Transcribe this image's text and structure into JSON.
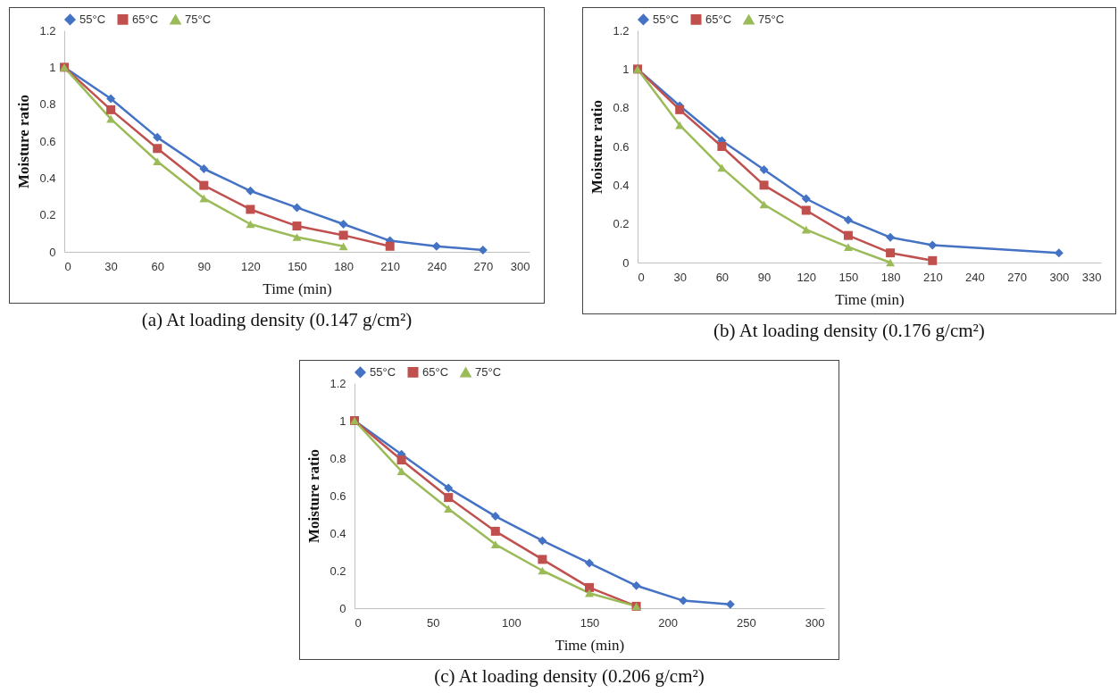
{
  "chart_data": [
    {
      "type": "line",
      "xlabel": "Time  (min)",
      "ylabel": "Moisture ratio",
      "xlim": [
        0,
        300
      ],
      "xticks": [
        0,
        30,
        60,
        90,
        120,
        150,
        180,
        210,
        240,
        270,
        300
      ],
      "ylim": [
        0,
        1.2
      ],
      "yticks": [
        0,
        0.2,
        0.4,
        0.6,
        0.8,
        1,
        1.2
      ],
      "legend": "top",
      "annotations": [
        "(a) At loading density (0.147 g/cm²)"
      ],
      "series": [
        {
          "name": "55°C",
          "color": "#4472c4",
          "marker": "diamond",
          "x": [
            0,
            30,
            60,
            90,
            120,
            150,
            180,
            210,
            240,
            270
          ],
          "values": [
            1,
            0.83,
            0.62,
            0.45,
            0.33,
            0.24,
            0.15,
            0.06,
            0.03,
            0.01
          ]
        },
        {
          "name": "65°C",
          "color": "#c0504d",
          "marker": "square",
          "x": [
            0,
            30,
            60,
            90,
            120,
            150,
            180,
            210
          ],
          "values": [
            1,
            0.77,
            0.56,
            0.36,
            0.23,
            0.14,
            0.09,
            0.03
          ]
        },
        {
          "name": "75°C",
          "color": "#9bbb59",
          "marker": "triangle",
          "x": [
            0,
            30,
            60,
            90,
            120,
            150,
            180
          ],
          "values": [
            1,
            0.72,
            0.49,
            0.29,
            0.15,
            0.08,
            0.03
          ]
        }
      ]
    },
    {
      "type": "line",
      "xlabel": "Time  (min)",
      "ylabel": "Moisture ratio",
      "xlim": [
        0,
        330
      ],
      "xticks": [
        0,
        30,
        60,
        90,
        120,
        150,
        180,
        210,
        240,
        270,
        300,
        330
      ],
      "ylim": [
        0,
        1.2
      ],
      "yticks": [
        0,
        0.2,
        0.4,
        0.6,
        0.8,
        1,
        1.2
      ],
      "legend": "top",
      "annotations": [
        "(b)  At loading density (0.176 g/cm²)"
      ],
      "series": [
        {
          "name": "55°C",
          "color": "#4472c4",
          "marker": "diamond",
          "x": [
            0,
            30,
            60,
            90,
            120,
            150,
            180,
            210,
            300
          ],
          "values": [
            1,
            0.81,
            0.63,
            0.48,
            0.33,
            0.22,
            0.13,
            0.09,
            0.05
          ]
        },
        {
          "name": "65°C",
          "color": "#c0504d",
          "marker": "square",
          "x": [
            0,
            30,
            60,
            90,
            120,
            150,
            180,
            210
          ],
          "values": [
            1,
            0.79,
            0.6,
            0.4,
            0.27,
            0.14,
            0.05,
            0.01
          ]
        },
        {
          "name": "75°C",
          "color": "#9bbb59",
          "marker": "triangle",
          "x": [
            0,
            30,
            60,
            90,
            120,
            150,
            180
          ],
          "values": [
            1,
            0.71,
            0.49,
            0.3,
            0.17,
            0.08,
            0
          ]
        }
      ]
    },
    {
      "type": "line",
      "xlabel": "Time  (min)",
      "ylabel": "Moisture ratio",
      "xlim": [
        0,
        300
      ],
      "xticks": [
        0,
        50,
        100,
        150,
        200,
        250,
        300
      ],
      "ylim": [
        0,
        1.2
      ],
      "yticks": [
        0,
        0.2,
        0.4,
        0.6,
        0.8,
        1,
        1.2
      ],
      "legend": "top",
      "annotations": [
        "(c) At loading density (0.206 g/cm²)"
      ],
      "series": [
        {
          "name": "55°C",
          "color": "#4472c4",
          "marker": "diamond",
          "x": [
            0,
            30,
            60,
            90,
            120,
            150,
            180,
            210,
            240
          ],
          "values": [
            1,
            0.82,
            0.64,
            0.49,
            0.36,
            0.24,
            0.12,
            0.04,
            0.02
          ]
        },
        {
          "name": "65°C",
          "color": "#c0504d",
          "marker": "square",
          "x": [
            0,
            30,
            60,
            90,
            120,
            150,
            180
          ],
          "values": [
            1,
            0.79,
            0.59,
            0.41,
            0.26,
            0.11,
            0.01
          ]
        },
        {
          "name": "75°C",
          "color": "#9bbb59",
          "marker": "triangle",
          "x": [
            0,
            30,
            60,
            90,
            120,
            150,
            180
          ],
          "values": [
            1,
            0.73,
            0.53,
            0.34,
            0.2,
            0.08,
            0.01
          ]
        }
      ]
    }
  ]
}
